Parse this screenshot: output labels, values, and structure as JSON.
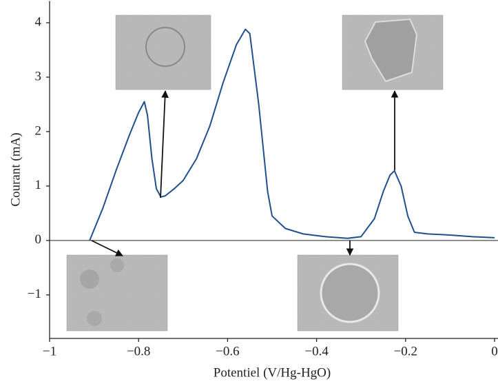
{
  "chart_data": {
    "type": "line",
    "x_label": "Potentiel (V/Hg-HgO)",
    "y_label": "Courant (mA)",
    "x": [
      -0.91,
      -0.88,
      -0.85,
      -0.82,
      -0.8,
      -0.787,
      -0.78,
      -0.77,
      -0.76,
      -0.75,
      -0.74,
      -0.72,
      -0.7,
      -0.67,
      -0.64,
      -0.61,
      -0.58,
      -0.56,
      -0.55,
      -0.53,
      -0.51,
      -0.5,
      -0.47,
      -0.43,
      -0.38,
      -0.33,
      -0.3,
      -0.27,
      -0.25,
      -0.235,
      -0.225,
      -0.21,
      -0.195,
      -0.18,
      -0.15,
      -0.1,
      -0.05,
      0
    ],
    "values": [
      0,
      0.6,
      1.3,
      1.95,
      2.35,
      2.55,
      2.3,
      1.5,
      0.95,
      0.8,
      0.82,
      0.95,
      1.1,
      1.5,
      2.1,
      2.9,
      3.6,
      3.88,
      3.8,
      2.5,
      0.9,
      0.45,
      0.22,
      0.12,
      0.07,
      0.04,
      0.07,
      0.4,
      0.9,
      1.2,
      1.28,
      1.0,
      0.45,
      0.15,
      0.12,
      0.1,
      0.07,
      0.05
    ],
    "color": "#1f4f8f",
    "xlim": [
      -1,
      0
    ],
    "ylim": [
      -1.8,
      4.4
    ],
    "xticks": [
      {
        "value": -1,
        "label": "−1"
      },
      {
        "value": -0.8,
        "label": "−0.8"
      },
      {
        "value": -0.6,
        "label": "−0.6"
      },
      {
        "value": -0.4,
        "label": "−0.4"
      },
      {
        "value": -0.2,
        "label": "−0.2"
      },
      0
    ],
    "yticks": [
      {
        "value": -1,
        "label": "−1"
      },
      0,
      1,
      2,
      3,
      4
    ],
    "zero_line": true
  }
}
